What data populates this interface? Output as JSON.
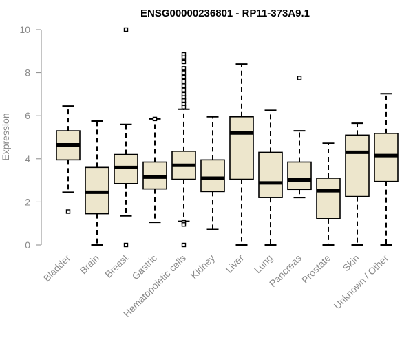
{
  "chart_data": {
    "type": "boxplot",
    "title": "ENSG00000236801 - RP11-373A9.1",
    "xlabel": "",
    "ylabel": "Expression",
    "ylim": [
      0,
      10
    ],
    "yticks": [
      0,
      2,
      4,
      6,
      8,
      10
    ],
    "box_fill": "#ede6cc",
    "categories": [
      "Bladder",
      "Brain",
      "Breast",
      "Gastric",
      "Hematopoietic cells",
      "Kidney",
      "Liver",
      "Lung",
      "Pancreas",
      "Prostate",
      "Skin",
      "Unknown / Other"
    ],
    "boxes": [
      {
        "min": 2.45,
        "q1": 3.95,
        "median": 4.65,
        "q3": 5.3,
        "max": 6.45,
        "outliers": [
          1.55
        ]
      },
      {
        "min": 0.0,
        "q1": 1.45,
        "median": 2.45,
        "q3": 3.6,
        "max": 5.75,
        "outliers": []
      },
      {
        "min": 1.35,
        "q1": 2.85,
        "median": 3.6,
        "q3": 4.2,
        "max": 5.6,
        "outliers": [
          10.0,
          0.0
        ]
      },
      {
        "min": 1.05,
        "q1": 2.6,
        "median": 3.15,
        "q3": 3.85,
        "max": 5.85,
        "outliers": [
          5.85
        ]
      },
      {
        "min": 1.1,
        "q1": 3.05,
        "median": 3.7,
        "q3": 4.35,
        "max": 6.3,
        "outliers": [
          8.85,
          8.7,
          8.5,
          8.2,
          8.0,
          7.8,
          7.6,
          7.4,
          7.2,
          7.0,
          6.85,
          6.7,
          6.55,
          6.4,
          1.05,
          0.95,
          0.0
        ]
      },
      {
        "min": 0.72,
        "q1": 2.48,
        "median": 3.1,
        "q3": 3.95,
        "max": 5.95,
        "outliers": []
      },
      {
        "min": 0.0,
        "q1": 3.05,
        "median": 5.2,
        "q3": 5.95,
        "max": 8.4,
        "outliers": []
      },
      {
        "min": 0.0,
        "q1": 2.2,
        "median": 2.88,
        "q3": 4.3,
        "max": 6.25,
        "outliers": []
      },
      {
        "min": 2.2,
        "q1": 2.58,
        "median": 3.02,
        "q3": 3.85,
        "max": 5.3,
        "outliers": [
          7.75
        ]
      },
      {
        "min": 0.0,
        "q1": 1.22,
        "median": 2.52,
        "q3": 3.1,
        "max": 4.72,
        "outliers": []
      },
      {
        "min": 0.0,
        "q1": 2.25,
        "median": 4.3,
        "q3": 5.1,
        "max": 5.65,
        "outliers": []
      },
      {
        "min": 0.0,
        "q1": 2.95,
        "median": 4.15,
        "q3": 5.18,
        "max": 7.02,
        "outliers": []
      }
    ]
  }
}
